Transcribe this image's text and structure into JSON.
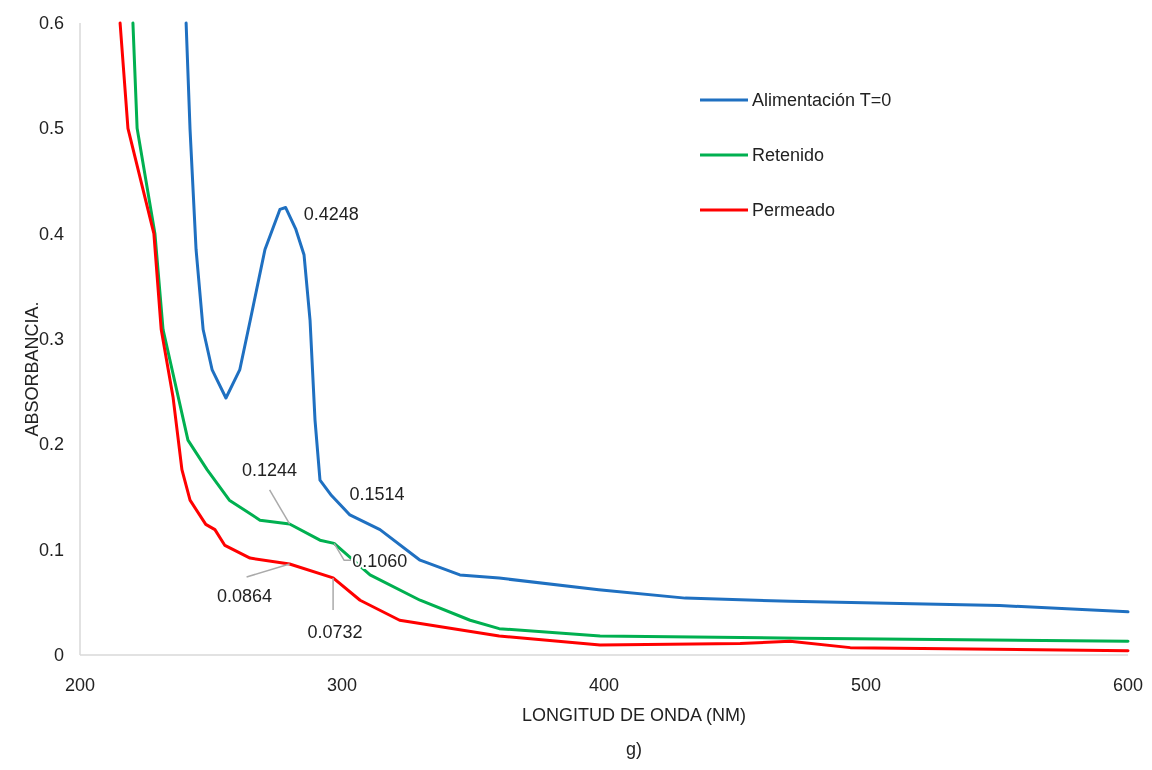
{
  "chart_data": {
    "type": "line",
    "xlabel": "LONGITUD DE ONDA (NM)",
    "ylabel": "ABSORBANCIA.",
    "xlim": [
      200,
      600
    ],
    "ylim": [
      0,
      0.6
    ],
    "xticks": [
      200,
      300,
      400,
      500,
      600
    ],
    "yticks": [
      0,
      0.1,
      0.2,
      0.3,
      0.4,
      0.5,
      0.6
    ],
    "grid": false,
    "legend": "top right",
    "marker": "none",
    "line_style": "solid",
    "series": [
      {
        "name": "Alimentación T=0",
        "color": "#1f70c1",
        "x": [
          240.5,
          242,
          244.3,
          247,
          250.4,
          255.7,
          261,
          265,
          270.6,
          276.3,
          278.5,
          282.4,
          285.5,
          287.8,
          289.7,
          291.6,
          296,
          303,
          314.5,
          329.8,
          345,
          360,
          398,
          431,
          471,
          513,
          551,
          600
        ],
        "values": [
          0.6,
          0.499,
          0.385,
          0.309,
          0.271,
          0.244,
          0.271,
          0.318,
          0.385,
          0.423,
          0.4248,
          0.404,
          0.38,
          0.318,
          0.223,
          0.166,
          0.1514,
          0.133,
          0.119,
          0.09,
          0.076,
          0.073,
          0.062,
          0.054,
          0.051,
          0.049,
          0.047,
          0.041
        ]
      },
      {
        "name": "Retenido",
        "color": "#00b050",
        "x": [
          220.2,
          221.8,
          228.6,
          231.7,
          241.2,
          248.5,
          257,
          268.7,
          280,
          291.6,
          297,
          310.7,
          329.8,
          348.9,
          360,
          398.5,
          474.8,
          600
        ],
        "values": [
          0.6,
          0.5,
          0.4,
          0.309,
          0.204,
          0.176,
          0.147,
          0.128,
          0.1244,
          0.109,
          0.106,
          0.076,
          0.052,
          0.033,
          0.025,
          0.018,
          0.016,
          0.013
        ]
      },
      {
        "name": "Permeado",
        "color": "#ff0000",
        "x": [
          215.3,
          218.3,
          228.2,
          231,
          235.5,
          238.9,
          242,
          248,
          251.5,
          255.3,
          264.9,
          280,
          296.6,
          306.9,
          322,
          360,
          398.5,
          452,
          471,
          494,
          600
        ],
        "values": [
          0.6,
          0.5,
          0.4,
          0.309,
          0.245,
          0.176,
          0.147,
          0.124,
          0.119,
          0.104,
          0.092,
          0.0864,
          0.0732,
          0.052,
          0.033,
          0.018,
          0.0095,
          0.011,
          0.013,
          0.007,
          0.004
        ]
      }
    ],
    "annotations": [
      {
        "text": "0.4248",
        "x": 278.5,
        "y": 0.4248
      },
      {
        "text": "0.1514",
        "x": 296,
        "y": 0.1514
      },
      {
        "text": "0.1244",
        "x": 280,
        "y": 0.1244
      },
      {
        "text": "0.1060",
        "x": 297,
        "y": 0.106
      },
      {
        "text": "0.0864",
        "x": 280,
        "y": 0.0864
      },
      {
        "text": "0.0732",
        "x": 296.6,
        "y": 0.0732
      },
      "g)"
    ]
  }
}
